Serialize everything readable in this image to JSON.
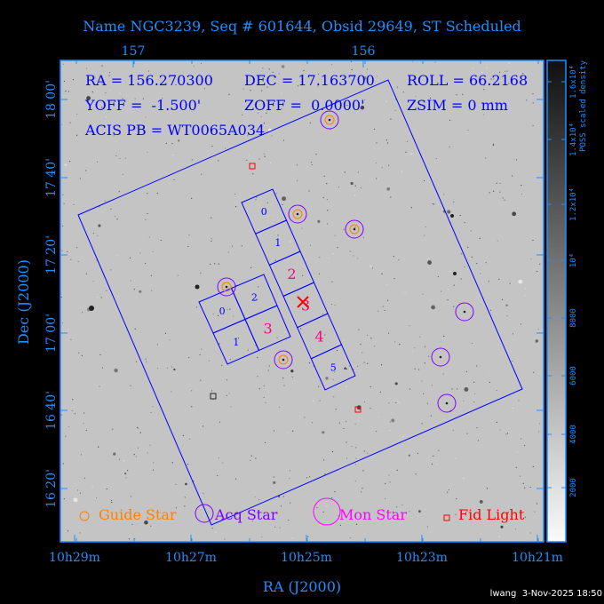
{
  "title": "Name NGC3239, Seq # 601644, Obsid 29649, ST Scheduled",
  "info": {
    "ra": "RA = 156.270300",
    "dec": "DEC = 17.163700",
    "roll": "ROLL = 66.2168",
    "yoff": "YOFF =  -1.500'",
    "zoff": "ZOFF =  0.0000'",
    "zsim": "ZSIM = 0 mm",
    "acis_pb": "ACIS PB = WT0065A034"
  },
  "chart_data": {
    "type": "scatter",
    "xlabel": "RA (J2000)",
    "ylabel": "Dec (J2000)",
    "top_ticks": [
      "157",
      "156"
    ],
    "bottom_ticks": [
      "10h29m",
      "10h27m",
      "10h25m",
      "10h23m",
      "10h21m"
    ],
    "left_ticks": [
      "18 00'",
      "17 40'",
      "17 20'",
      "17 00'",
      "16 40'",
      "16 20'"
    ],
    "colorbar": {
      "label": "POSS scaled density",
      "ticks": [
        "2000",
        "4000",
        "6000",
        "8000",
        "10⁴",
        "1.2x10⁴",
        "1.4x10⁴",
        "1.6x10⁴"
      ]
    },
    "acis_i_labels": [
      "0",
      "1",
      "2",
      "3"
    ],
    "acis_s_labels": [
      "0",
      "1",
      "2",
      "3",
      "4",
      "5"
    ],
    "legend": [
      {
        "label": "Guide Star",
        "color": "#ff8000"
      },
      {
        "label": "Acq Star",
        "color": "#8000ff"
      },
      {
        "label": "Mon Star",
        "color": "#ff00ff"
      },
      {
        "label": "Fid Light",
        "color": "#ff0000"
      }
    ]
  },
  "colors": {
    "axis": "#1e8fff",
    "field": "#0000ff",
    "background": "#c4c4c4",
    "chip_active": "#ff0080"
  },
  "footer": "lwang  3-Nov-2025 18:50"
}
